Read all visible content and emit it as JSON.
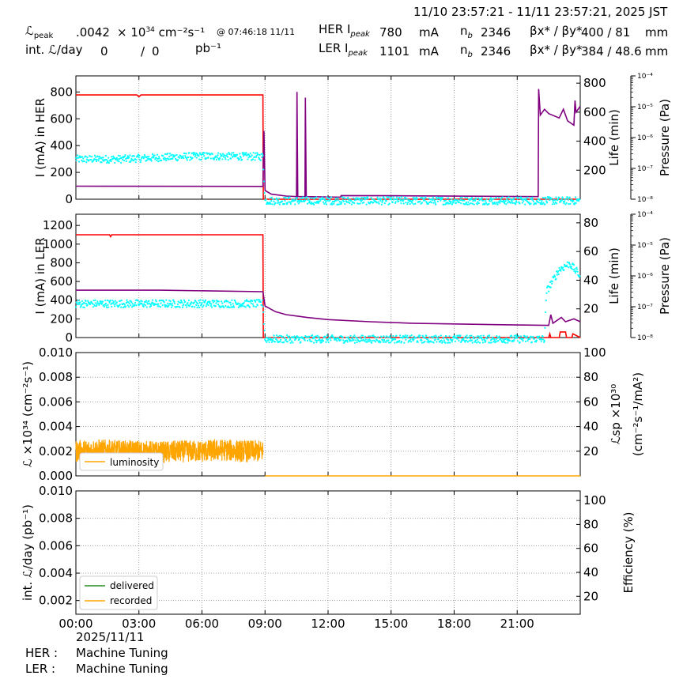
{
  "header": {
    "range": "11/10 23:57:21 - 11/11 23:57:21, 2025 JST",
    "lum_label": "ℒ",
    "lum_label_sub": "peak",
    "lum_peak": ".0042",
    "lum_unit": "× 10",
    "lum_unit_exp": "34",
    "lum_unit2": "cm⁻²s⁻¹",
    "lum_time": "@ 07:46:18 11/11",
    "int_label": "int. ℒ/day",
    "int_value": "0",
    "int_sep": "/",
    "int_value2": "0",
    "int_unit": "pb⁻¹",
    "her_label": "HER I",
    "her_sub": "peak",
    "her_current": "780",
    "her_unit": "mA",
    "her_nb_label": "n",
    "her_nb_sub": "b",
    "her_nb": "2346",
    "beta_label": "βx* / βy*",
    "her_beta": "400  / 81",
    "beta_unit": "mm",
    "ler_label": "LER I",
    "ler_sub": "peak",
    "ler_current": "1101",
    "ler_unit": "mA",
    "ler_nb": "2346",
    "ler_beta": "384  / 48.6",
    "ler_beta_unit": "mm"
  },
  "footer": {
    "date": "2025/11/11",
    "her_label": "HER :",
    "her_status": "Machine Tuning",
    "ler_label": "LER :",
    "ler_status": "Machine Tuning"
  },
  "colors": {
    "current": "#ff0000",
    "life": "#800080",
    "pressure": "#00ffff",
    "luminosity": "#ffa500",
    "delivered": "#228b22",
    "recorded": "#ffa500",
    "grid": "#888888"
  },
  "chart_data": [
    {
      "type": "line",
      "panel": "her",
      "xlabel": "",
      "ylabel": "I (mA) in HER",
      "ylabel_right": "Life (min)",
      "ylabel_right2": "Pressure (Pa)",
      "x_unit": "hours since 00:00",
      "xlim": [
        0,
        24
      ],
      "ylim": [
        0,
        920
      ],
      "yticks": [
        0,
        200,
        400,
        600,
        800
      ],
      "ylim_right": [
        0,
        850
      ],
      "yticks_right": [
        200,
        400,
        600,
        800
      ],
      "pressure_log_range": [
        -8,
        -4
      ],
      "pressure_ticks": [
        "10⁻⁸",
        "10⁻⁷",
        "10⁻⁶",
        "10⁻⁵",
        "10⁻⁴"
      ],
      "series": [
        {
          "name": "HER current",
          "axis": "left",
          "color": "#ff0000",
          "points": [
            [
              0,
              778
            ],
            [
              2.9,
              778
            ],
            [
              3.0,
              765
            ],
            [
              3.1,
              778
            ],
            [
              8.9,
              778
            ],
            [
              8.92,
              0
            ],
            [
              24,
              0
            ]
          ]
        },
        {
          "name": "HER lifetime",
          "axis": "right",
          "color": "#800080",
          "points": [
            [
              0,
              90
            ],
            [
              8.9,
              88
            ],
            [
              8.95,
              470
            ],
            [
              9.0,
              60
            ],
            [
              9.3,
              35
            ],
            [
              10,
              22
            ],
            [
              10.5,
              18
            ],
            [
              10.52,
              740
            ],
            [
              10.56,
              18
            ],
            [
              10.9,
              18
            ],
            [
              10.92,
              700
            ],
            [
              10.96,
              18
            ],
            [
              12,
              15
            ],
            [
              12.6,
              14
            ],
            [
              12.62,
              25
            ],
            [
              15,
              24
            ],
            [
              18,
              21
            ],
            [
              22,
              18
            ],
            [
              22.02,
              760
            ],
            [
              22.1,
              580
            ],
            [
              22.3,
              620
            ],
            [
              22.5,
              590
            ],
            [
              23.0,
              560
            ],
            [
              23.2,
              620
            ],
            [
              23.4,
              540
            ],
            [
              23.7,
              510
            ],
            [
              23.75,
              680
            ],
            [
              23.8,
              600
            ],
            [
              24,
              640
            ]
          ]
        },
        {
          "name": "HER pressure",
          "axis": "pressure",
          "color": "#00ffff",
          "points": [
            [
              0,
              -6.7
            ],
            [
              2,
              -6.7
            ],
            [
              4,
              -6.65
            ],
            [
              6,
              -6.6
            ],
            [
              8.9,
              -6.62
            ],
            [
              9.0,
              -8.05
            ],
            [
              24,
              -8.05
            ]
          ]
        }
      ]
    },
    {
      "type": "line",
      "panel": "ler",
      "xlabel": "",
      "ylabel": "I (mA) in LER",
      "ylabel_right": "Life (min)",
      "ylabel_right2": "Pressure (Pa)",
      "x_unit": "hours since 00:00",
      "xlim": [
        0,
        24
      ],
      "ylim": [
        0,
        1320
      ],
      "yticks": [
        0,
        200,
        400,
        600,
        800,
        1000,
        1200
      ],
      "ylim_right": [
        0,
        86
      ],
      "yticks_right": [
        20,
        40,
        60,
        80
      ],
      "pressure_log_range": [
        -8,
        -4
      ],
      "pressure_ticks": [
        "10⁻⁸",
        "10⁻⁷",
        "10⁻⁶",
        "10⁻⁵",
        "10⁻⁴"
      ],
      "series": [
        {
          "name": "LER current",
          "axis": "left",
          "color": "#ff0000",
          "points": [
            [
              0,
              1100
            ],
            [
              1.6,
              1100
            ],
            [
              1.65,
              1080
            ],
            [
              1.7,
              1100
            ],
            [
              8.9,
              1100
            ],
            [
              8.92,
              0
            ],
            [
              22.5,
              0
            ],
            [
              22.55,
              40
            ],
            [
              22.6,
              0
            ],
            [
              23.0,
              0
            ],
            [
              23.05,
              60
            ],
            [
              23.3,
              60
            ],
            [
              23.35,
              0
            ],
            [
              23.6,
              0
            ],
            [
              23.65,
              40
            ],
            [
              24,
              0
            ]
          ]
        },
        {
          "name": "LER lifetime",
          "axis": "right",
          "color": "#800080",
          "points": [
            [
              0,
              33
            ],
            [
              4,
              33
            ],
            [
              8.9,
              32
            ],
            [
              9.0,
              22
            ],
            [
              9.5,
              18
            ],
            [
              10,
              16
            ],
            [
              11,
              14
            ],
            [
              12,
              12.5
            ],
            [
              14,
              11
            ],
            [
              16,
              10
            ],
            [
              18,
              9.5
            ],
            [
              20,
              9
            ],
            [
              22.5,
              8.5
            ],
            [
              22.6,
              16
            ],
            [
              22.7,
              10
            ],
            [
              23.1,
              14
            ],
            [
              23.3,
              11
            ],
            [
              23.7,
              13
            ],
            [
              24,
              11
            ]
          ]
        },
        {
          "name": "LER pressure",
          "axis": "pressure",
          "color": "#00ffff",
          "points": [
            [
              0,
              -6.9
            ],
            [
              3,
              -6.9
            ],
            [
              6,
              -6.9
            ],
            [
              8.9,
              -6.9
            ],
            [
              9.0,
              -8.05
            ],
            [
              22.3,
              -8.05
            ],
            [
              22.4,
              -6.5
            ],
            [
              23,
              -5.8
            ],
            [
              23.5,
              -5.6
            ],
            [
              24,
              -6.0
            ]
          ]
        }
      ]
    },
    {
      "type": "line",
      "panel": "lum",
      "xlabel": "",
      "ylabel": "ℒ ×10³⁴ (cm⁻²s⁻¹)",
      "ylabel_right": "ℒsp ×10³⁰",
      "ylabel_right2": "(cm⁻²s⁻¹/mA²)",
      "x_unit": "hours since 00:00",
      "xlim": [
        0,
        24
      ],
      "ylim": [
        0,
        0.01
      ],
      "yticks": [
        "0.000",
        "0.002",
        "0.004",
        "0.006",
        "0.008",
        "0.010"
      ],
      "ylim_right": [
        0,
        100
      ],
      "yticks_right": [
        20,
        40,
        60,
        80,
        100
      ],
      "legend": "luminosity",
      "legend_loc": "lower-left",
      "series": [
        {
          "name": "luminosity",
          "axis": "left",
          "color": "#ffa500",
          "points": [
            [
              0,
              0.002
            ],
            [
              1,
              0.0021
            ],
            [
              2,
              0.002
            ],
            [
              3,
              0.002
            ],
            [
              4,
              0.0019
            ],
            [
              5,
              0.002
            ],
            [
              6,
              0.002
            ],
            [
              7,
              0.0021
            ],
            [
              8,
              0.002
            ],
            [
              8.9,
              0.002
            ],
            [
              9.0,
              0.0
            ],
            [
              24,
              0.0
            ]
          ],
          "noise_band": 0.0009
        }
      ]
    },
    {
      "type": "line",
      "panel": "intlum",
      "xlabel": "",
      "ylabel": "int. ℒ/day (pb⁻¹)",
      "ylabel_right": "Efficiency (%)",
      "x_unit": "hours since 00:00",
      "xlim": [
        0,
        24
      ],
      "ylim": [
        0.001,
        0.01
      ],
      "yticks": [
        "0.002",
        "0.004",
        "0.006",
        "0.008",
        "0.010"
      ],
      "ylim_right": [
        5,
        108
      ],
      "yticks_right": [
        20,
        40,
        60,
        80,
        100
      ],
      "xticks": [
        "00:00",
        "03:00",
        "06:00",
        "09:00",
        "12:00",
        "15:00",
        "18:00",
        "21:00"
      ],
      "legend": [
        "delivered",
        "recorded"
      ],
      "legend_loc": "lower-left",
      "series": [
        {
          "name": "delivered",
          "axis": "left",
          "color": "#228b22",
          "points": []
        },
        {
          "name": "recorded",
          "axis": "left",
          "color": "#ffa500",
          "points": []
        }
      ]
    }
  ]
}
